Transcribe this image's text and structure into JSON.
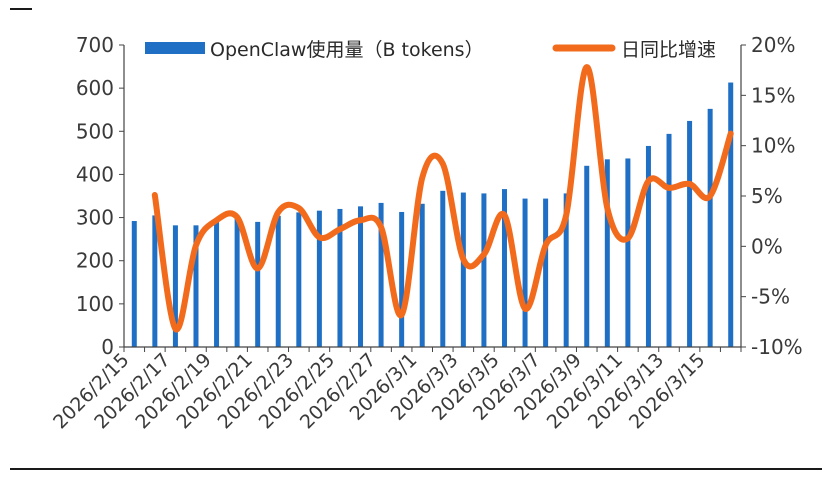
{
  "chart_data": {
    "type": "bar",
    "categories": [
      "2026/2/15",
      "2026/2/16",
      "2026/2/17",
      "2026/2/18",
      "2026/2/19",
      "2026/2/20",
      "2026/2/21",
      "2026/2/22",
      "2026/2/23",
      "2026/2/24",
      "2026/2/25",
      "2026/2/26",
      "2026/2/27",
      "2026/2/28",
      "2026/3/1",
      "2026/3/2",
      "2026/3/3",
      "2026/3/4",
      "2026/3/5",
      "2026/3/6",
      "2026/3/7",
      "2026/3/8",
      "2026/3/9",
      "2026/3/10",
      "2026/3/11",
      "2026/3/12",
      "2026/3/13",
      "2026/3/14",
      "2026/3/15",
      "2026/3/16"
    ],
    "x_tick_labels": [
      "2026/2/15",
      "2026/2/17",
      "2026/2/19",
      "2026/2/21",
      "2026/2/23",
      "2026/2/25",
      "2026/2/27",
      "2026/3/1",
      "2026/3/3",
      "2026/3/5",
      "2026/3/7",
      "2026/3/9",
      "2026/3/11",
      "2026/3/13",
      "2026/3/15"
    ],
    "series": [
      {
        "name": "OpenClaw使用量（B tokens）",
        "type": "bar",
        "axis": "left",
        "color": "#1f6fc5",
        "values": [
          292,
          305,
          282,
          282,
          292,
          297,
          290,
          304,
          312,
          316,
          320,
          326,
          334,
          313,
          332,
          362,
          358,
          356,
          366,
          344,
          344,
          356,
          420,
          435,
          437,
          466,
          494,
          524,
          552,
          613
        ]
      },
      {
        "name": "日同比增速",
        "type": "line",
        "axis": "right",
        "color": "#f26b1d",
        "values": [
          null,
          5.1,
          -8.2,
          0.1,
          2.6,
          2.9,
          -2.2,
          3.4,
          3.8,
          0.9,
          1.7,
          2.6,
          1.9,
          -6.8,
          6.8,
          8.2,
          -1.3,
          -0.8,
          3.1,
          -6.2,
          0.1,
          3.1,
          17.8,
          3.8,
          0.8,
          6.5,
          5.8,
          6.2,
          5.0,
          11.2
        ]
      }
    ],
    "yleft": {
      "ylim": [
        0,
        700
      ],
      "ticks": [
        "0",
        "100",
        "200",
        "300",
        "400",
        "500",
        "600",
        "700"
      ]
    },
    "yright": {
      "ylim": [
        -10,
        20
      ],
      "ticks": [
        "-10%",
        "-5%",
        "0%",
        "5%",
        "10%",
        "15%",
        "20%"
      ]
    },
    "legend_placement": "top",
    "grid": false
  }
}
